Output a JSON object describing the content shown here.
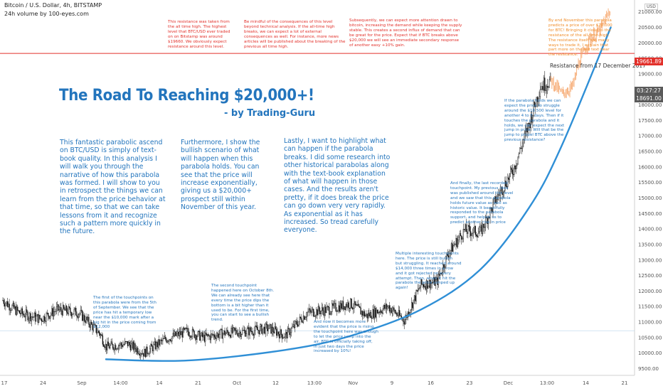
{
  "header": {
    "symbol": "Bitcoin / U.S. Dollar, 4h, BITSTAMP",
    "volume": "24h volume by 100-eyes.com"
  },
  "title": "The Road To Reaching $20,000+!",
  "byline": "- by Trading-Guru",
  "paragraphs": [
    "This fantastic parabolic ascend on BTC/USD is simply of text-book quality. In this analysis I will walk you through the narrative of how this parabola was formed. I will show to you in retrospect the things we can learn from the price behavior at that time, so that we can take lessons from it and recognize such a pattern more quickly in the future.",
    "Furthermore, I show the bullish scenario of what will happen when this parabola holds. You can see that the price will increase exponentially, giving us a $20,000+ prospect still within November of this year.",
    "Lastly, I want to highlight what can happen if the parabola breaks. I did some research into other historical parabolas along with the text-book explanation of what will happen in those cases. And the results aren't pretty, if it does break the price can go down very very rapidly. As exponential as it has increased. So tread carefully everyone."
  ],
  "notes": {
    "red1": "This resistance was taken from\nthe all time high. The highest\nlevel that BTC/USD ever traded\non on Bitstamp was around\n$19660. We obviously expect\nresistance around this level.",
    "red2": "Be mindful of the consequences of this level\nbeyond technical analysis. If the all-time high\nbreaks, we can expect a lot of external\nconsequences as well. For instance, more news\narticles will be published about the breaking of the\nprevious all time high.",
    "red3": "Subsequently, we can expect more attention drawn to\nbitcoin, increasing the demand while keeping the supply\nstable. This creates a second influx of demand that can\nbe great for the price. Expect that if BTC breaks above\n$20,000 we will see an immediate secondary response\nof another easy +10% gain.",
    "orange1": "By end November this parabola\npredicts a price of over $20,000\nfor BTC! Bringing it close to the\nresistance of the all-time-high.\nThe resistance itself has many\nways to trade it, I explain that\npart more on the red text near\nthe resistance.",
    "blue_right": "If the parabola holds we can\nexpect the price to struggle\naround the $18,500 level for\nanother 4 to 5 days. Then if it\ntouches the parabola and it\nholds, we can expect the next\njump in price. Will that be the\njump to propel BTC above the\nprevious resistance?",
    "blue_last": "And finally, the last recorded\ntouchpoint. My previous idea\nwas published around this level\nand we saw that this parabola\nholds future value as well as\nhistoric value. It beautifully\nresponded to the parabola\nsupport, and helped us to\npredict another rise in price",
    "blue_multi": "Multiple interesting touchpoints\nhere. The price is still bullish\nbut struggling. It reached around\n$14,000 three times in a row\nand it got rejected on every\nattempt. Then, when it hit the\nparabola the price jumped up\nagain!",
    "blue_third": "And now it becomes more\nevident that the price is rising,\nthe touchpoint here was enough\nto let the price jump into the\nair. BTC is officially taking off,\nin just two days the price\nincreased by 10%!",
    "blue_second": "The second touchpoint\nhappened here on October 8th.\nWe can already see here that\nevery time the price dips the\nbottom is a bit higher than it\nused to be. For the first time,\nyou can start to see a bullish\ntrend.",
    "blue_first": "The first of the touchpoints on\nthis parabola were from the 5th\nof September. We see that the\nprice has hit a temporary low\nnear the $10,000 mark after a\nbig hit in the price coming from\n$12,000"
  },
  "resistance_label": "Resistance from 17 December 2017",
  "price_tags": {
    "resistance": "19661.89",
    "timer": "03:27:27",
    "current": "18691.00",
    "usd": "USD"
  },
  "colors": {
    "candle": "#000000",
    "projection": "#f5a266",
    "parabola": "#2f8fd6",
    "resistance": "#e2302a",
    "text_blue": "#2375bd",
    "text_red": "#e2302a",
    "text_orange": "#f08c28"
  },
  "chart_data": {
    "type": "line",
    "title": "The Road To Reaching $20,000+!",
    "yaxis_ticks": [
      21000,
      20500,
      20000,
      19500,
      19000,
      18500,
      18000,
      17500,
      17000,
      16500,
      16000,
      15500,
      15000,
      14500,
      14000,
      13500,
      13000,
      12500,
      12000,
      11500,
      11000,
      10500,
      10000,
      9500
    ],
    "ylim": [
      9350,
      21200
    ],
    "xaxis_ticks": [
      "17",
      "24",
      "Sep",
      "14:00",
      "14",
      "21",
      "Oct",
      "12",
      "13:00",
      "Nov",
      "9",
      "16",
      "23",
      "Dec",
      "13:00",
      "14",
      "21"
    ],
    "resistance": 19661.89,
    "series": [
      {
        "name": "BTC/USD price",
        "x": [
          "Aug 17",
          "Aug 20",
          "Aug 24",
          "Aug 27",
          "Aug 31",
          "Sep 4",
          "Sep 5",
          "Sep 9",
          "Sep 12",
          "Sep 16",
          "Sep 20",
          "Sep 23",
          "Sep 27",
          "Oct 1",
          "Oct 5",
          "Oct 8",
          "Oct 12",
          "Oct 16",
          "Oct 20",
          "Oct 23",
          "Oct 27",
          "Oct 30",
          "Nov 2",
          "Nov 5",
          "Nov 7",
          "Nov 10",
          "Nov 13",
          "Nov 16",
          "Nov 19",
          "Nov 22",
          "Nov 24",
          "Nov 26"
        ],
        "values": [
          11700,
          11300,
          11100,
          11400,
          11300,
          10600,
          10200,
          10300,
          10000,
          10450,
          10700,
          10500,
          10650,
          10700,
          10800,
          10550,
          11300,
          11400,
          11600,
          11200,
          11500,
          11050,
          12200,
          12300,
          13200,
          13950,
          13900,
          15000,
          15900,
          17400,
          18600,
          18800
        ]
      },
      {
        "name": "Projection",
        "x": [
          "Nov 26",
          "Nov 28",
          "Nov 30",
          "Dec 1",
          "Dec 3",
          "Dec 5",
          "Dec 7"
        ],
        "values": [
          18800,
          18350,
          18600,
          19300,
          20100,
          20400,
          21100
        ]
      },
      {
        "name": "Parabola support",
        "x": [
          "Sep 5",
          "Sep 20",
          "Oct 8",
          "Oct 20",
          "Nov 2",
          "Nov 13",
          "Nov 22",
          "Nov 28",
          "Dec 7"
        ],
        "values": [
          9800,
          9760,
          10100,
          10550,
          11400,
          12700,
          14700,
          16700,
          20500
        ]
      }
    ]
  }
}
